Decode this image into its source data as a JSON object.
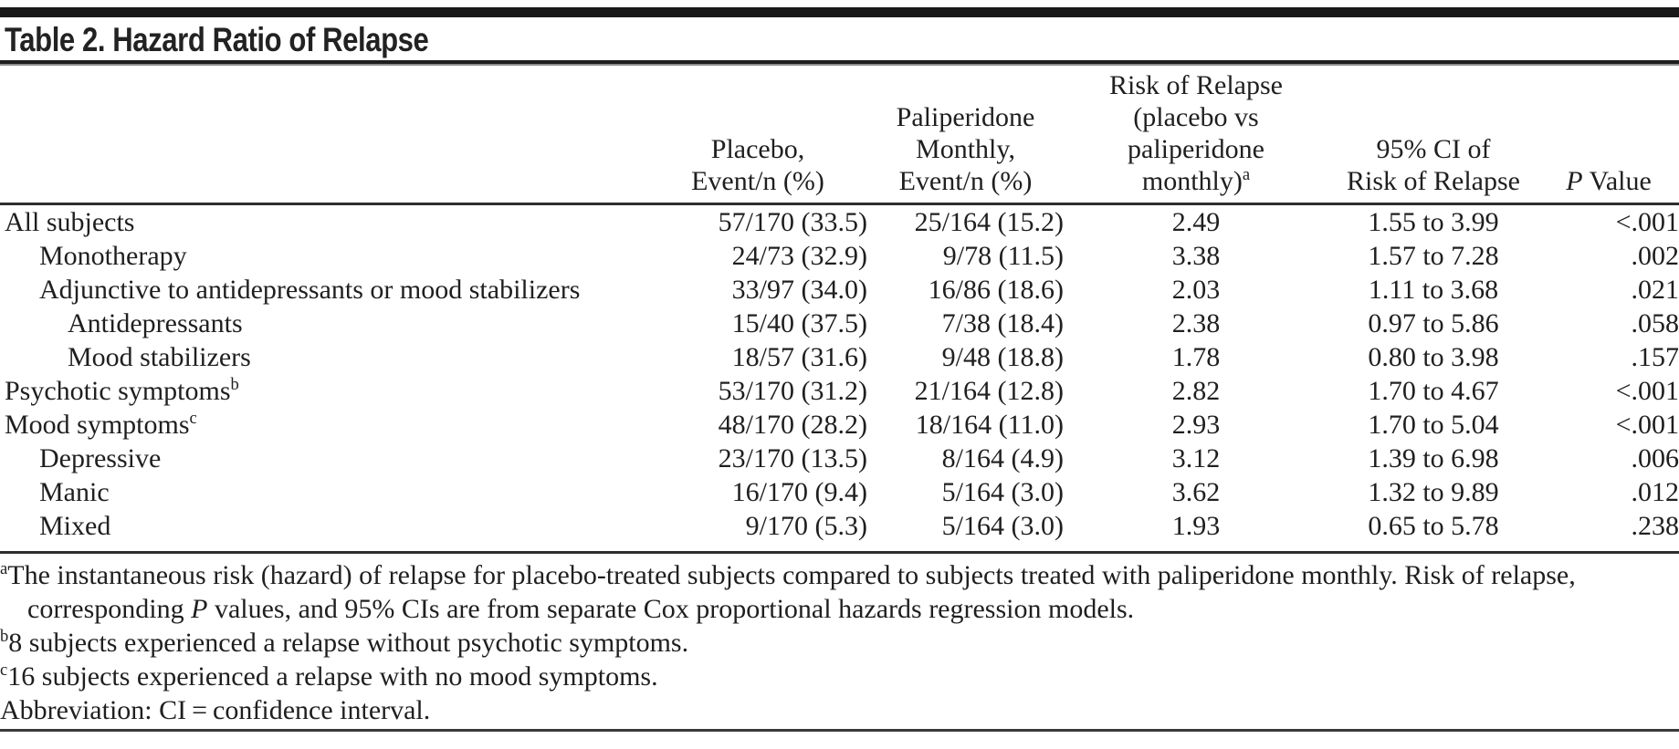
{
  "table": {
    "title": "Table 2. Hazard Ratio of Relapse",
    "columns": [
      {
        "id": "label",
        "lines": []
      },
      {
        "id": "placebo",
        "lines": [
          "Placebo,",
          "Event/n (%)"
        ]
      },
      {
        "id": "paliperidone",
        "lines": [
          "Paliperidone",
          "Monthly,",
          "Event/n (%)"
        ]
      },
      {
        "id": "risk",
        "lines": [
          "Risk of Relapse",
          "(placebo vs",
          "paliperidone",
          "monthly)^a"
        ]
      },
      {
        "id": "ci",
        "lines": [
          "95% CI of",
          "Risk of Relapse"
        ]
      },
      {
        "id": "p",
        "lines": [
          "*P* Value"
        ]
      }
    ],
    "rows": [
      {
        "indent": 0,
        "cells": {
          "label": "All subjects",
          "placebo": "57/170 (33.5)",
          "paliperidone": "25/164 (15.2)",
          "risk": "2.49",
          "ci": "1.55 to 3.99",
          "p": "<.001"
        }
      },
      {
        "indent": 1,
        "cells": {
          "label": "Monotherapy",
          "placebo": "24/73 (32.9)",
          "paliperidone": "9/78 (11.5)",
          "risk": "3.38",
          "ci": "1.57 to 7.28",
          "p": ".002"
        }
      },
      {
        "indent": 1,
        "cells": {
          "label": "Adjunctive to antidepressants or mood stabilizers",
          "placebo": "33/97 (34.0)",
          "paliperidone": "16/86 (18.6)",
          "risk": "2.03",
          "ci": "1.11 to 3.68",
          "p": ".021"
        }
      },
      {
        "indent": 2,
        "cells": {
          "label": "Antidepressants",
          "placebo": "15/40 (37.5)",
          "paliperidone": "7/38 (18.4)",
          "risk": "2.38",
          "ci": "0.97 to 5.86",
          "p": ".058"
        }
      },
      {
        "indent": 2,
        "cells": {
          "label": "Mood stabilizers",
          "placebo": "18/57 (31.6)",
          "paliperidone": "9/48 (18.8)",
          "risk": "1.78",
          "ci": "0.80 to 3.98",
          "p": ".157"
        }
      },
      {
        "indent": 0,
        "cells": {
          "label": "Psychotic symptoms^b",
          "placebo": "53/170 (31.2)",
          "paliperidone": "21/164 (12.8)",
          "risk": "2.82",
          "ci": "1.70 to 4.67",
          "p": "<.001"
        }
      },
      {
        "indent": 0,
        "cells": {
          "label": "Mood symptoms^c",
          "placebo": "48/170 (28.2)",
          "paliperidone": "18/164 (11.0)",
          "risk": "2.93",
          "ci": "1.70 to 5.04",
          "p": "<.001"
        }
      },
      {
        "indent": 1,
        "cells": {
          "label": "Depressive",
          "placebo": "23/170 (13.5)",
          "paliperidone": "8/164 (4.9)",
          "risk": "3.12",
          "ci": "1.39 to 6.98",
          "p": ".006"
        }
      },
      {
        "indent": 1,
        "cells": {
          "label": "Manic",
          "placebo": "16/170 (9.4)",
          "paliperidone": "5/164 (3.0)",
          "risk": "3.62",
          "ci": "1.32 to 9.89",
          "p": ".012"
        }
      },
      {
        "indent": 1,
        "cells": {
          "label": "Mixed",
          "placebo": "9/170 (5.3)",
          "paliperidone": "5/164 (3.0)",
          "risk": "1.93",
          "ci": "0.65 to 5.78",
          "p": ".238"
        }
      }
    ],
    "footnotes": [
      {
        "sup": "a",
        "text": "The instantaneous risk (hazard) of relapse for placebo-treated subjects compared to subjects treated with paliperidone monthly. Risk of relapse, corresponding *P* values, and 95% CIs are from separate Cox proportional hazards regression models."
      },
      {
        "sup": "b",
        "text": "8 subjects experienced a relapse without psychotic symptoms."
      },
      {
        "sup": "c",
        "text": "16 subjects experienced a relapse with no mood symptoms."
      },
      {
        "sup": "",
        "text": "Abbreviation: CI = confidence interval."
      }
    ]
  },
  "colors": {
    "text": "#1f1f1f",
    "rule": "#2e2e2e",
    "top_bar": "#191919",
    "background": "#ffffff"
  }
}
